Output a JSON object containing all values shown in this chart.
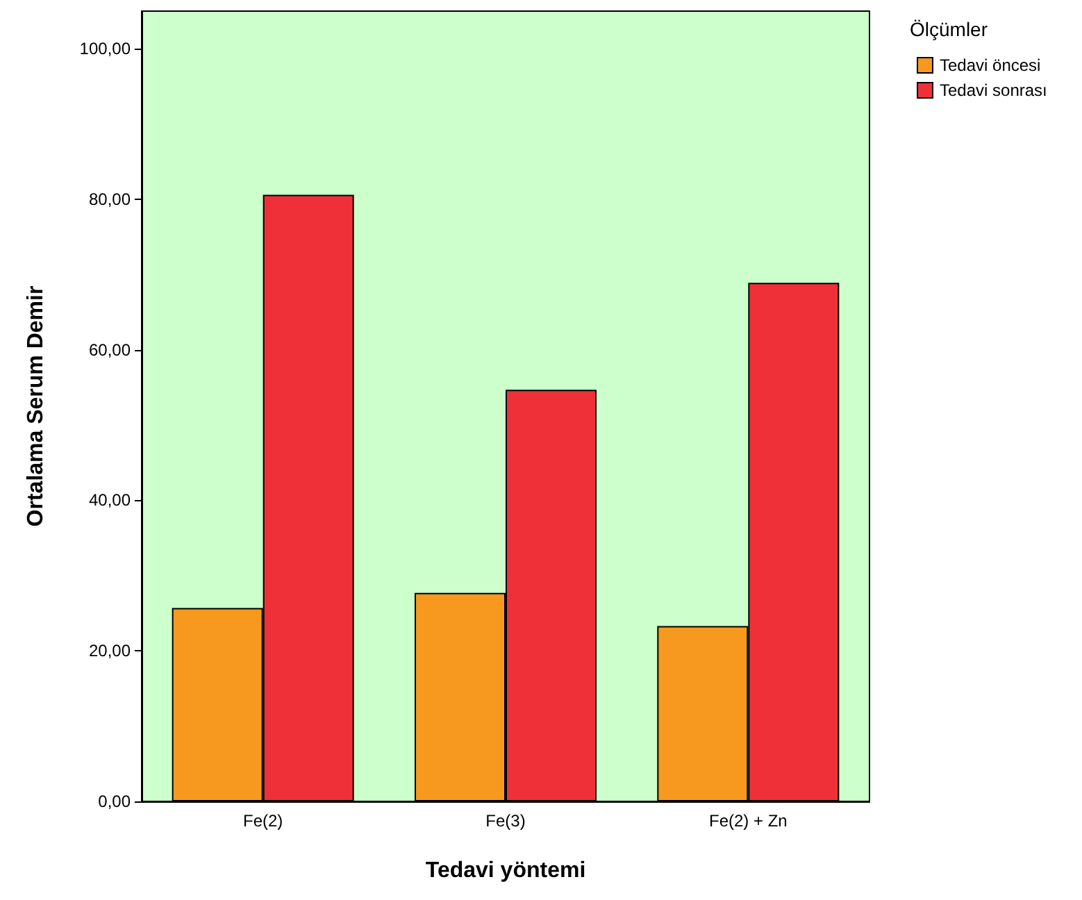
{
  "chart_data": {
    "type": "bar",
    "xlabel": "Tedavi yöntemi",
    "ylabel": "Ortalama Serum Demir",
    "legend_title": "Ölçümler",
    "categories": [
      "Fe(2)",
      "Fe(3)",
      "Fe(2) + Zn"
    ],
    "series": [
      {
        "name": "Tedavi öncesi",
        "color": "#f7991f",
        "values": [
          25.7,
          27.7,
          23.3
        ]
      },
      {
        "name": "Tedavi sonrası",
        "color": "#ef3038",
        "values": [
          80.6,
          54.7,
          68.9
        ]
      }
    ],
    "ylim": [
      0,
      105
    ],
    "yticks": [
      {
        "value": 0,
        "label": "0,00"
      },
      {
        "value": 20,
        "label": "20,00"
      },
      {
        "value": 40,
        "label": "40,00"
      },
      {
        "value": 60,
        "label": "60,00"
      },
      {
        "value": 80,
        "label": "80,00"
      },
      {
        "value": 100,
        "label": "100,00"
      }
    ],
    "grid": false,
    "legend": "top right"
  }
}
